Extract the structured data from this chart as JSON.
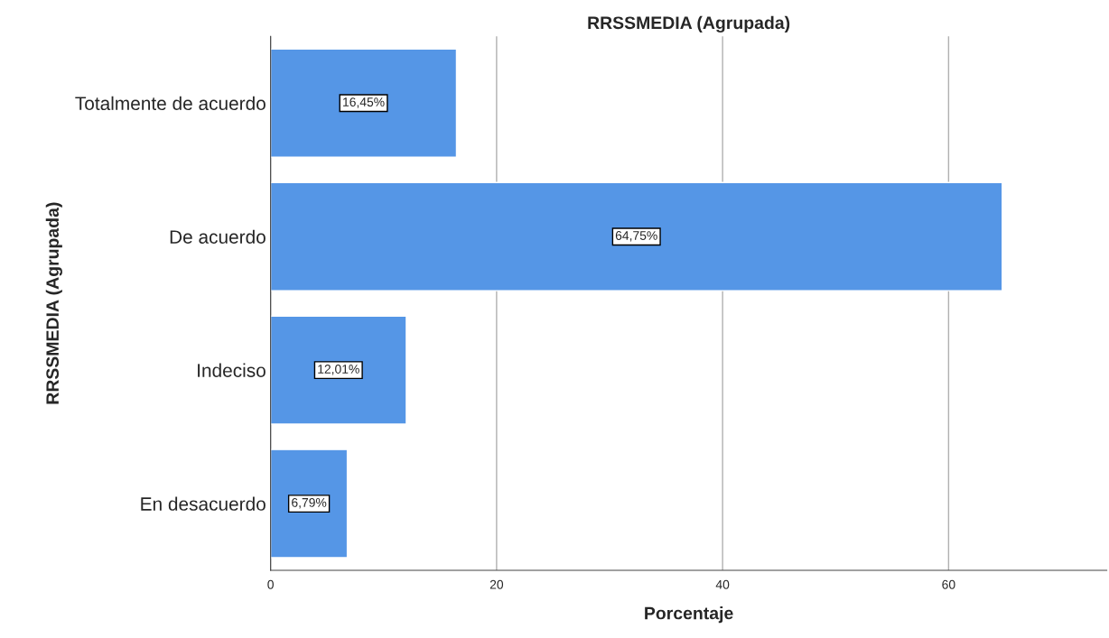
{
  "chart_data": {
    "type": "bar",
    "orientation": "horizontal",
    "title": "RRSSMEDIA (Agrupada)",
    "xlabel": "Porcentaje",
    "ylabel": "RRSSMEDIA (Agrupada)",
    "categories": [
      "Totalmente de acuerdo",
      "De acuerdo",
      "Indeciso",
      "En desacuerdo"
    ],
    "values": [
      16.45,
      64.75,
      12.01,
      6.79
    ],
    "value_labels": [
      "16,45%",
      "64,75%",
      "12,01%",
      "6,79%"
    ],
    "color": "#5596e6",
    "xlim": [
      0,
      74
    ],
    "xticks": [
      0,
      20,
      40,
      60
    ],
    "grid": "x",
    "legend": false
  }
}
